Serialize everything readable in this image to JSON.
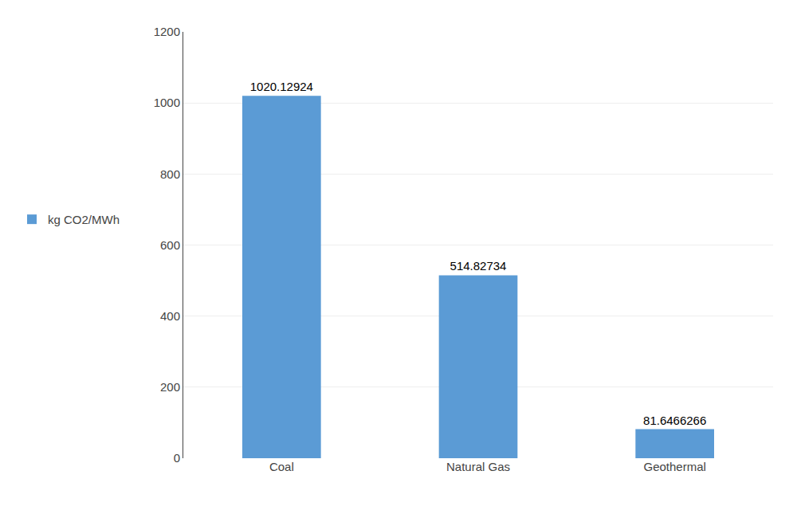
{
  "chart_data": {
    "type": "bar",
    "categories": [
      "Coal",
      "Natural Gas",
      "Geothermal"
    ],
    "series": [
      {
        "name": "kg CO2/MWh",
        "color": "#5b9bd5",
        "values": [
          1020.12924,
          514.82734,
          81.6466266
        ]
      }
    ],
    "ylim": [
      0,
      1200
    ],
    "yticks": [
      0,
      200,
      400,
      600,
      800,
      1000,
      1200
    ],
    "grid": true,
    "legend": "left",
    "data_labels": true
  }
}
